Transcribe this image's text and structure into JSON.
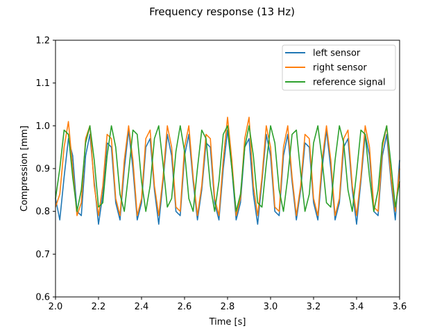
{
  "chart_data": {
    "type": "line",
    "title": "Frequency response (13 Hz)",
    "xlabel": "Time [s]",
    "ylabel": "Compression [mm]",
    "xlim": [
      2.0,
      3.6
    ],
    "ylim": [
      0.6,
      1.2
    ],
    "xticks": [
      "2.0",
      "2.2",
      "2.4",
      "2.6",
      "2.8",
      "3.0",
      "3.2",
      "3.4",
      "3.6"
    ],
    "yticks": [
      "0.6",
      "0.7",
      "0.8",
      "0.9",
      "1.0",
      "1.1",
      "1.2"
    ],
    "grid": false,
    "legend_position": "top-right",
    "frequency_hz": 13,
    "series": [
      {
        "name": "left sensor",
        "color": "#1f77b4",
        "x": [
          2.0,
          2.02,
          2.04,
          2.06,
          2.08,
          2.1,
          2.12,
          2.14,
          2.16,
          2.18,
          2.2,
          2.22,
          2.24,
          2.26,
          2.28,
          2.3,
          2.32,
          2.34,
          2.36,
          2.38,
          2.4,
          2.42,
          2.44,
          2.46,
          2.48,
          2.5,
          2.52,
          2.54,
          2.56,
          2.58,
          2.6,
          2.62,
          2.64,
          2.66,
          2.68,
          2.7,
          2.72,
          2.74,
          2.76,
          2.78,
          2.8,
          2.82,
          2.84,
          2.86,
          2.88,
          2.9,
          2.92,
          2.94,
          2.96,
          2.98,
          3.0,
          3.02,
          3.04,
          3.06,
          3.08,
          3.1,
          3.12,
          3.14,
          3.16,
          3.18,
          3.2,
          3.22,
          3.24,
          3.26,
          3.28,
          3.3,
          3.32,
          3.34,
          3.36,
          3.38,
          3.4,
          3.42,
          3.44,
          3.46,
          3.48,
          3.5,
          3.52,
          3.54,
          3.56,
          3.58,
          3.6
        ],
        "y": [
          0.83,
          0.78,
          0.88,
          0.97,
          0.93,
          0.8,
          0.79,
          0.93,
          0.98,
          0.87,
          0.77,
          0.84,
          0.96,
          0.95,
          0.82,
          0.78,
          0.9,
          0.99,
          0.9,
          0.78,
          0.82,
          0.95,
          0.97,
          0.85,
          0.77,
          0.87,
          0.98,
          0.93,
          0.8,
          0.79,
          0.93,
          0.98,
          0.87,
          0.78,
          0.85,
          0.96,
          0.95,
          0.82,
          0.78,
          0.9,
          0.99,
          0.9,
          0.78,
          0.82,
          0.95,
          0.97,
          0.84,
          0.77,
          0.87,
          0.98,
          0.93,
          0.8,
          0.79,
          0.93,
          0.98,
          0.87,
          0.78,
          0.85,
          0.96,
          0.95,
          0.82,
          0.78,
          0.9,
          0.99,
          0.9,
          0.78,
          0.82,
          0.95,
          0.97,
          0.85,
          0.77,
          0.87,
          0.98,
          0.93,
          0.8,
          0.79,
          0.93,
          0.98,
          0.87,
          0.78,
          0.92
        ]
      },
      {
        "name": "right sensor",
        "color": "#ff7f0e",
        "x": [
          2.0,
          2.02,
          2.04,
          2.06,
          2.08,
          2.1,
          2.12,
          2.14,
          2.16,
          2.18,
          2.2,
          2.22,
          2.24,
          2.26,
          2.28,
          2.3,
          2.32,
          2.34,
          2.36,
          2.38,
          2.4,
          2.42,
          2.44,
          2.46,
          2.48,
          2.5,
          2.52,
          2.54,
          2.56,
          2.58,
          2.6,
          2.62,
          2.64,
          2.66,
          2.68,
          2.7,
          2.72,
          2.74,
          2.76,
          2.78,
          2.8,
          2.82,
          2.84,
          2.86,
          2.88,
          2.9,
          2.92,
          2.94,
          2.96,
          2.98,
          3.0,
          3.02,
          3.04,
          3.06,
          3.08,
          3.1,
          3.12,
          3.14,
          3.16,
          3.18,
          3.2,
          3.22,
          3.24,
          3.26,
          3.28,
          3.3,
          3.32,
          3.34,
          3.36,
          3.38,
          3.4,
          3.42,
          3.44,
          3.46,
          3.48,
          3.5,
          3.52,
          3.54,
          3.56,
          3.58,
          3.6
        ],
        "y": [
          0.81,
          0.84,
          0.95,
          1.01,
          0.9,
          0.79,
          0.82,
          0.97,
          1.0,
          0.86,
          0.79,
          0.86,
          0.98,
          0.97,
          0.83,
          0.79,
          0.92,
          1.0,
          0.92,
          0.79,
          0.83,
          0.97,
          0.99,
          0.86,
          0.79,
          0.88,
          1.0,
          0.95,
          0.81,
          0.8,
          0.95,
          1.0,
          0.88,
          0.79,
          0.86,
          0.98,
          0.97,
          0.83,
          0.79,
          0.92,
          1.02,
          0.92,
          0.79,
          0.83,
          0.97,
          1.02,
          0.86,
          0.79,
          0.88,
          1.0,
          0.95,
          0.81,
          0.8,
          0.95,
          1.0,
          0.88,
          0.79,
          0.86,
          0.98,
          0.97,
          0.83,
          0.79,
          0.92,
          1.0,
          0.92,
          0.79,
          0.83,
          0.97,
          0.99,
          0.86,
          0.79,
          0.88,
          1.0,
          0.95,
          0.81,
          0.8,
          0.95,
          1.0,
          0.88,
          0.8,
          0.9
        ]
      },
      {
        "name": "reference signal",
        "color": "#2ca02c",
        "x": [
          2.0,
          2.02,
          2.04,
          2.06,
          2.08,
          2.1,
          2.12,
          2.14,
          2.16,
          2.18,
          2.2,
          2.22,
          2.24,
          2.26,
          2.28,
          2.3,
          2.32,
          2.34,
          2.36,
          2.38,
          2.4,
          2.42,
          2.44,
          2.46,
          2.48,
          2.5,
          2.52,
          2.54,
          2.56,
          2.58,
          2.6,
          2.62,
          2.64,
          2.66,
          2.68,
          2.7,
          2.72,
          2.74,
          2.76,
          2.78,
          2.8,
          2.82,
          2.84,
          2.86,
          2.88,
          2.9,
          2.92,
          2.94,
          2.96,
          2.98,
          3.0,
          3.02,
          3.04,
          3.06,
          3.08,
          3.1,
          3.12,
          3.14,
          3.16,
          3.18,
          3.2,
          3.22,
          3.24,
          3.26,
          3.28,
          3.3,
          3.32,
          3.34,
          3.36,
          3.38,
          3.4,
          3.42,
          3.44,
          3.46,
          3.48,
          3.5,
          3.52,
          3.54,
          3.56,
          3.58,
          3.6
        ],
        "y": [
          0.83,
          0.9,
          0.99,
          0.98,
          0.88,
          0.8,
          0.85,
          0.96,
          1.0,
          0.92,
          0.81,
          0.82,
          0.93,
          1.0,
          0.95,
          0.84,
          0.8,
          0.89,
          0.99,
          0.98,
          0.87,
          0.8,
          0.86,
          0.97,
          1.0,
          0.91,
          0.81,
          0.83,
          0.94,
          1.0,
          0.94,
          0.83,
          0.8,
          0.9,
          0.99,
          0.97,
          0.86,
          0.8,
          0.87,
          0.98,
          1.0,
          0.9,
          0.8,
          0.84,
          0.95,
          1.0,
          0.93,
          0.82,
          0.81,
          0.91,
          1.0,
          0.96,
          0.85,
          0.8,
          0.88,
          0.98,
          0.99,
          0.89,
          0.8,
          0.84,
          0.96,
          1.0,
          0.92,
          0.82,
          0.81,
          0.92,
          1.0,
          0.96,
          0.85,
          0.8,
          0.89,
          0.99,
          0.98,
          0.88,
          0.8,
          0.85,
          0.96,
          1.0,
          0.91,
          0.81,
          0.87
        ]
      }
    ]
  }
}
